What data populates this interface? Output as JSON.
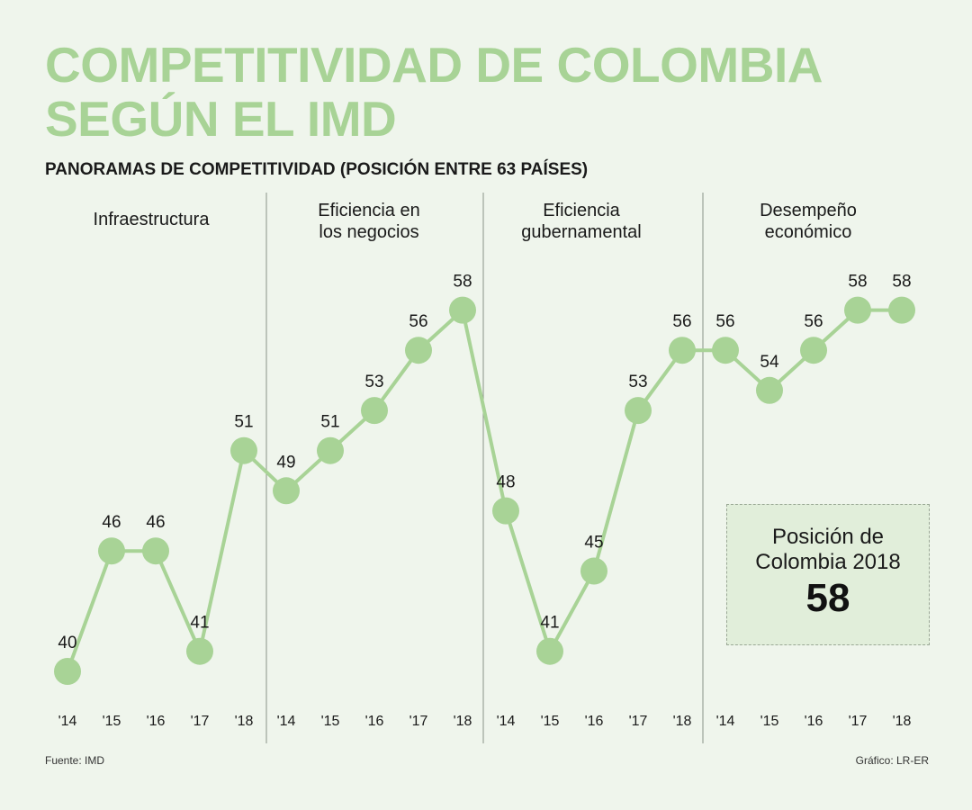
{
  "title_lines": [
    "COMPETITIVIDAD DE COLOMBIA",
    "SEGÚN EL IMD"
  ],
  "subtitle": "PANORAMAS DE COMPETITIVIDAD (POSICIÓN ENTRE 63 PAÍSES)",
  "source": "Fuente: IMD",
  "credit": "Gráfico: LR-ER",
  "callout": {
    "label": "Posición de\nColombia 2018",
    "value": "58"
  },
  "colors": {
    "line": "#a8d396",
    "marker": "#a8d396",
    "title": "#a8d396",
    "divider": "#8a9487"
  },
  "chart_data": {
    "type": "line",
    "x": [
      "'14",
      "'15",
      "'16",
      "'17",
      "'18"
    ],
    "inverted_ranking": true,
    "panels": [
      {
        "label": "Infraestructura",
        "values": [
          40,
          46,
          46,
          41,
          51
        ]
      },
      {
        "label": "Eficiencia en los negocios",
        "values": [
          49,
          51,
          53,
          56,
          58
        ]
      },
      {
        "label": "Eficiencia gubernamental",
        "values": [
          48,
          41,
          45,
          53,
          56
        ]
      },
      {
        "label": "Desempeño económico",
        "values": [
          56,
          54,
          56,
          58,
          58
        ]
      }
    ],
    "connected_across_panels": true
  }
}
